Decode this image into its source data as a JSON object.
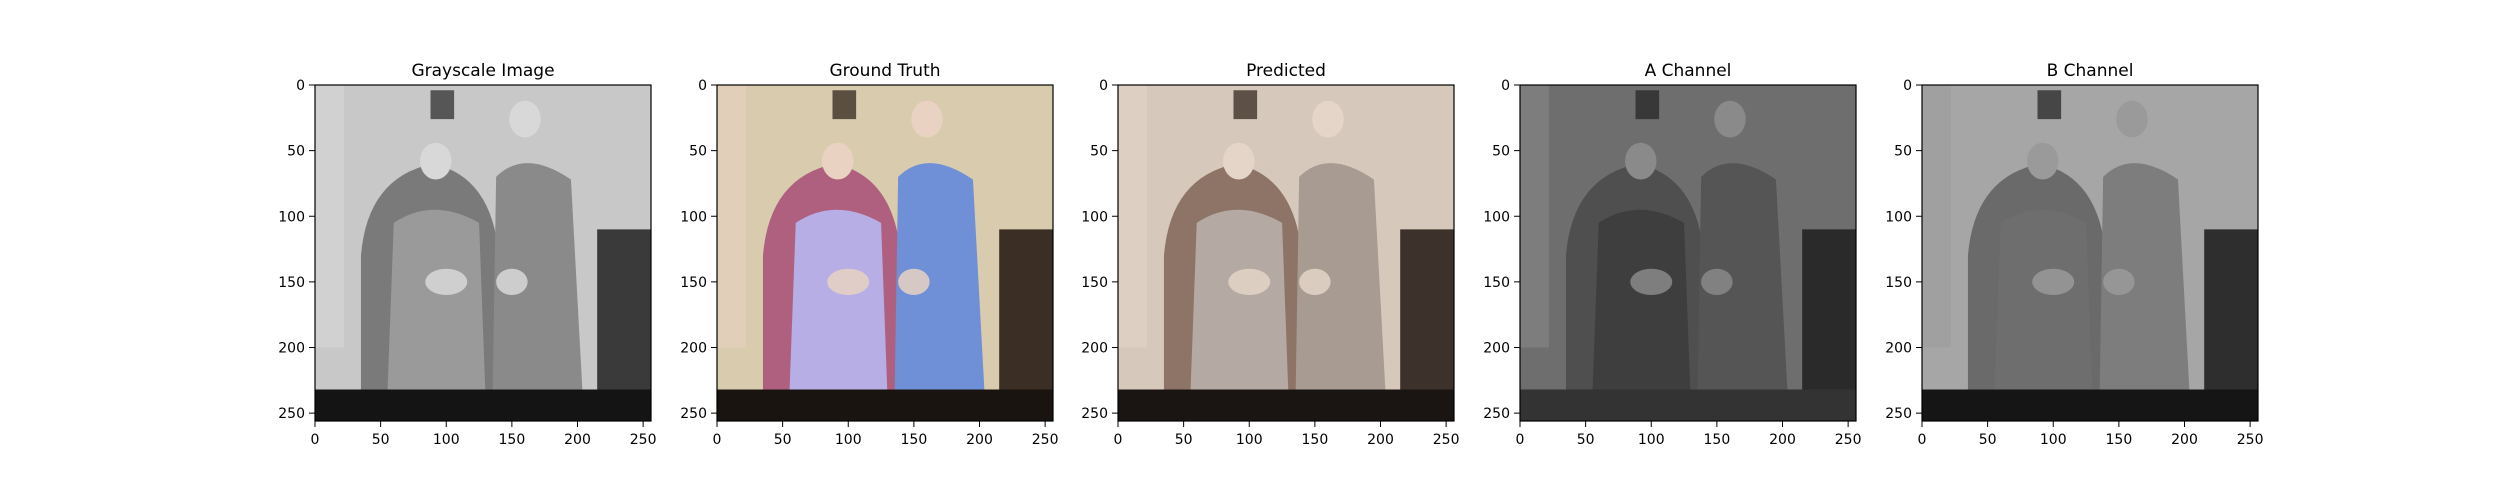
{
  "chart_data": [
    {
      "type": "image",
      "title": "Grayscale Image",
      "xlim": [
        0,
        256
      ],
      "ylim": [
        256,
        0
      ],
      "xticks": [
        0,
        50,
        100,
        150,
        200,
        250
      ],
      "yticks": [
        0,
        50,
        100,
        150,
        200,
        250
      ],
      "colors": {
        "wall": "#c8c8c8",
        "shade": "#3a3a3a",
        "chair": "#7a7a7a",
        "left_person": "#9a9a9a",
        "right_person": "#8a8a8a",
        "skin": "#d8d8d8",
        "floor": "#141414"
      }
    },
    {
      "type": "image",
      "title": "Ground Truth",
      "xlim": [
        0,
        256
      ],
      "ylim": [
        256,
        0
      ],
      "xticks": [
        0,
        50,
        100,
        150,
        200,
        250
      ],
      "yticks": [
        0,
        50,
        100,
        150,
        200,
        250
      ],
      "colors": {
        "wall": "#d9ccae",
        "shade": "#3b2f25",
        "chair": "#b0607f",
        "left_person": "#b7aee6",
        "right_person": "#6f8fd6",
        "skin": "#e9d2c2",
        "floor": "#1a1410"
      }
    },
    {
      "type": "image",
      "title": "Predicted",
      "xlim": [
        0,
        256
      ],
      "ylim": [
        256,
        0
      ],
      "xticks": [
        0,
        50,
        100,
        150,
        200,
        250
      ],
      "yticks": [
        0,
        50,
        100,
        150,
        200,
        250
      ],
      "colors": {
        "wall": "#d6c9bb",
        "shade": "#3d322b",
        "chair": "#8d7466",
        "left_person": "#b5aaa3",
        "right_person": "#a79b92",
        "skin": "#e4d5c8",
        "floor": "#1a1513"
      }
    },
    {
      "type": "image",
      "title": "A Channel",
      "xlim": [
        0,
        256
      ],
      "ylim": [
        256,
        0
      ],
      "xticks": [
        0,
        50,
        100,
        150,
        200,
        250
      ],
      "yticks": [
        0,
        50,
        100,
        150,
        200,
        250
      ],
      "colors": {
        "wall": "#6e6e6e",
        "shade": "#2a2a2a",
        "chair": "#4f4f4f",
        "left_person": "#3e3e3e",
        "right_person": "#555555",
        "skin": "#8a8a8a",
        "floor": "#333333"
      }
    },
    {
      "type": "image",
      "title": "B Channel",
      "xlim": [
        0,
        256
      ],
      "ylim": [
        256,
        0
      ],
      "xticks": [
        0,
        50,
        100,
        150,
        200,
        250
      ],
      "yticks": [
        0,
        50,
        100,
        150,
        200,
        250
      ],
      "colors": {
        "wall": "#a6a6a6",
        "shade": "#2e2e2e",
        "chair": "#6a6a6a",
        "left_person": "#6e6e6e",
        "right_person": "#7d7d7d",
        "skin": "#9a9a9a",
        "floor": "#151515"
      }
    }
  ]
}
